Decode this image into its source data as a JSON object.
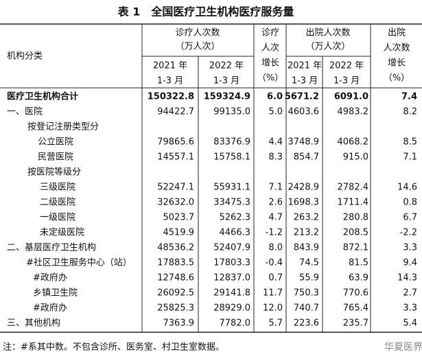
{
  "title": "表 1　全国医疗卫生机构医疗服务量",
  "header": {
    "row_label": "机构分类",
    "visits": "诊疗人次数",
    "visits_unit": "（万人次）",
    "visits_growth": [
      "诊疗",
      "人次",
      "增长",
      "（%）"
    ],
    "discharge": "出院人次数",
    "discharge_unit": "（万人次）",
    "discharge_growth": [
      "出院",
      "人次数",
      "增长",
      "（%）"
    ],
    "periods": [
      [
        "2021 年",
        "1-3 月"
      ],
      [
        "2022 年",
        "1-3 月"
      ],
      [
        "2021 年",
        "1-3 月"
      ],
      [
        "2022 年",
        "1-3 月"
      ]
    ]
  },
  "table": {
    "rows": [
      [
        "医疗卫生机构合计",
        "150322.8",
        "159324.9",
        "6.0",
        "5671.2",
        "6091.0",
        "7.4"
      ],
      [
        "一、医院",
        "94422.7",
        "99135.0",
        "5.0",
        "4603.6",
        "4983.2",
        "8.2"
      ],
      [
        "按登记注册类型分"
      ],
      [
        "公立医院",
        "79865.6",
        "83376.9",
        "4.4",
        "3748.9",
        "4068.2",
        "8.5"
      ],
      [
        "民营医院",
        "14557.1",
        "15758.1",
        "8.3",
        "854.7",
        "915.0",
        "7.1"
      ],
      [
        "按医院等级分"
      ],
      [
        "三级医院",
        "52247.1",
        "55931.1",
        "7.1",
        "2428.9",
        "2782.4",
        "14.6"
      ],
      [
        "二级医院",
        "32632.0",
        "33475.3",
        "2.6",
        "1698.3",
        "1711.4",
        "0.8"
      ],
      [
        "一级医院",
        "5023.7",
        "5262.3",
        "4.7",
        "263.2",
        "280.8",
        "6.7"
      ],
      [
        "未定级医院",
        "4519.9",
        "4466.3",
        "-1.2",
        "213.2",
        "208.5",
        "-2.2"
      ],
      [
        "二、基层医疗卫生机构",
        "48536.2",
        "52407.9",
        "8.0",
        "843.9",
        "872.1",
        "3.3"
      ],
      [
        "#社区卫生服务中心（站）",
        "17883.5",
        "17803.3",
        "-0.4",
        "74.5",
        "81.5",
        "9.4"
      ],
      [
        "#政府办",
        "12748.6",
        "12837.0",
        "0.7",
        "55.9",
        "63.9",
        "14.3"
      ],
      [
        "乡镇卫生院",
        "26092.5",
        "29141.8",
        "11.7",
        "750.3",
        "770.6",
        "2.7"
      ],
      [
        "#政府办",
        "25825.3",
        "28929.0",
        "12.0",
        "740.7",
        "765.4",
        "3.3"
      ],
      [
        "三、其他机构",
        "7363.9",
        "7782.0",
        "5.7",
        "223.6",
        "235.7",
        "5.4"
      ]
    ]
  },
  "note": "注：#系其中数。不包含诊所、医务室、村卫生室数据。",
  "watermark": "华夏医界"
}
